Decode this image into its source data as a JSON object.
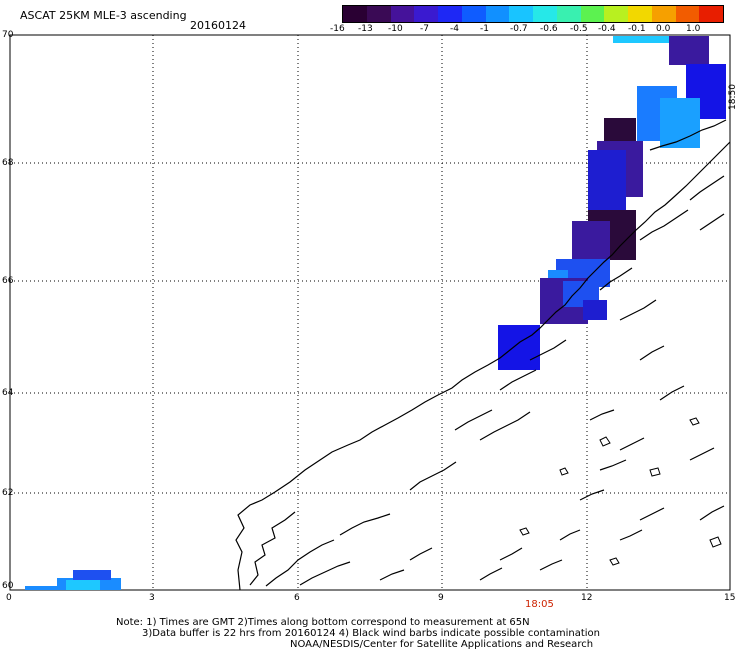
{
  "title": "ASCAT 25KM MLE-3 ascending",
  "date": "20160124",
  "colorbar": {
    "colors": [
      "#2a0033",
      "#3a0a55",
      "#45129a",
      "#3a1ad0",
      "#1e28f5",
      "#0f5cff",
      "#1190ff",
      "#19c4ff",
      "#26e8e8",
      "#39f0b0",
      "#5cf250",
      "#b8f020",
      "#f2d800",
      "#f6a000",
      "#f25c00",
      "#e81e00"
    ],
    "labels": [
      "-16",
      "-13",
      "-10",
      "-7",
      "-4",
      "-1",
      "-0.7",
      "-0.6",
      "-0.5",
      "-0.4",
      "-0.1",
      "0.0",
      "1.0"
    ]
  },
  "axes": {
    "x_ticks": [
      "0",
      "3",
      "6",
      "9",
      "12",
      "15"
    ],
    "y_ticks": [
      "70",
      "68",
      "66",
      "64",
      "62",
      "60"
    ],
    "right_label": "18:50"
  },
  "time_label": "18:05",
  "notes": {
    "line1": "Note: 1) Times are GMT 2)Times along bottom correspond to measurement at 65N",
    "line2": "3)Data buffer is 22 hrs from 20160124 4) Black wind barbs indicate possible contamination",
    "line3": "NOAA/NESDIS/Center for Satellite Applications and Research"
  },
  "swath_colors": {
    "dark_purple": "#2a0a3a",
    "purple": "#3a1a9e",
    "blue": "#1414e6",
    "medium_blue": "#1e50f0",
    "light_blue": "#1a8cff",
    "cyan": "#1ec8ff"
  }
}
